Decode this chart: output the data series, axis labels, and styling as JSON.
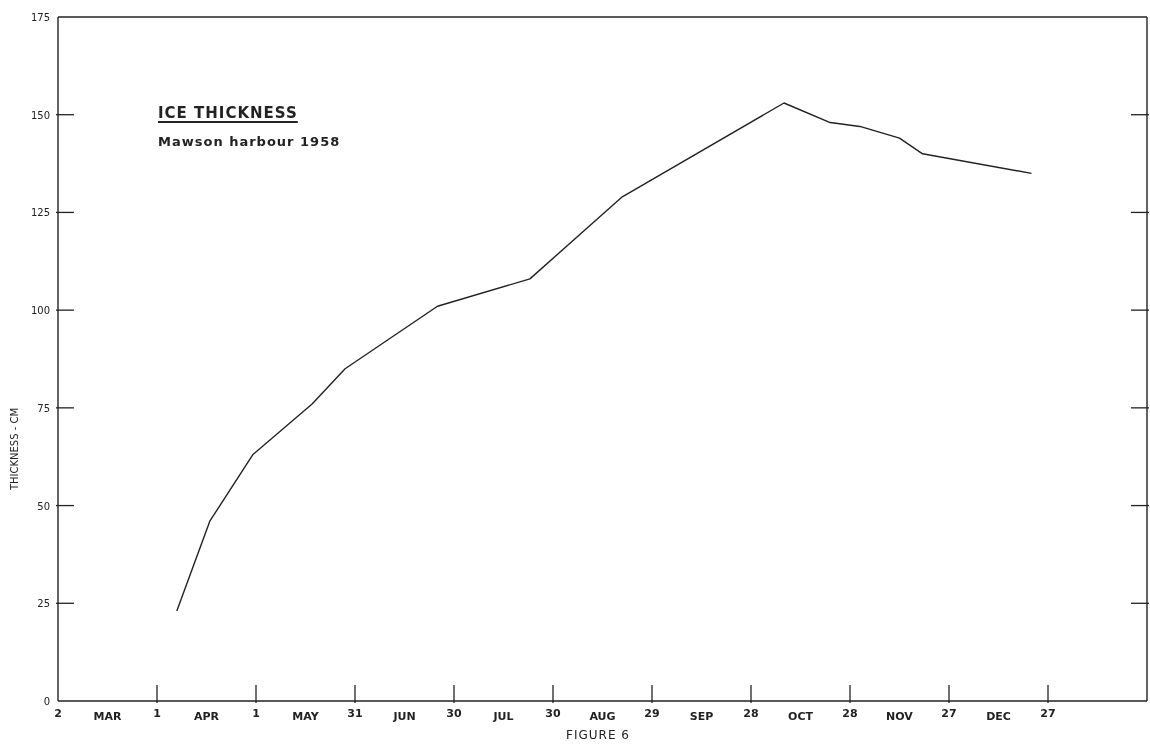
{
  "chart_data": {
    "type": "line",
    "title": "ICE THICKNESS",
    "subtitle": "Mawson harbour 1958",
    "ylabel": "THICKNESS - CM",
    "annotations": [
      "FIGURE 6"
    ],
    "x": [
      "1958-04-07",
      "1958-04-17",
      "1958-04-30",
      "1958-05-18",
      "1958-05-28",
      "1958-06-25",
      "1958-07-23",
      "1958-08-20",
      "1958-10-08",
      "1958-10-22",
      "1958-10-31",
      "1958-11-12",
      "1958-11-19",
      "1958-12-22"
    ],
    "series": [
      {
        "color": "#222222",
        "values": [
          23,
          46,
          63,
          76,
          85,
          101,
          108,
          129,
          153,
          148,
          147,
          144,
          140,
          135
        ]
      }
    ],
    "xlim": [
      "1958-03-02",
      "1959-01-26"
    ],
    "xticks": [
      {
        "value": "1958-03-02",
        "label": "2"
      },
      {
        "value": "1958-03-17",
        "label": "MAR"
      },
      {
        "value": "1958-04-01",
        "label": "1"
      },
      {
        "value": "1958-04-16",
        "label": "APR"
      },
      {
        "value": "1958-05-01",
        "label": "1"
      },
      {
        "value": "1958-05-16",
        "label": "MAY"
      },
      {
        "value": "1958-05-31",
        "label": "31"
      },
      {
        "value": "1958-06-15",
        "label": "JUN"
      },
      {
        "value": "1958-06-30",
        "label": "30"
      },
      {
        "value": "1958-07-15",
        "label": "JUL"
      },
      {
        "value": "1958-07-30",
        "label": "30"
      },
      {
        "value": "1958-08-14",
        "label": "AUG"
      },
      {
        "value": "1958-08-29",
        "label": "29"
      },
      {
        "value": "1958-09-13",
        "label": "SEP"
      },
      {
        "value": "1958-09-28",
        "label": "28"
      },
      {
        "value": "1958-10-13",
        "label": "OCT"
      },
      {
        "value": "1958-10-28",
        "label": "28"
      },
      {
        "value": "1958-11-12",
        "label": "NOV"
      },
      {
        "value": "1958-11-27",
        "label": "27"
      },
      {
        "value": "1958-12-12",
        "label": "DEC"
      },
      {
        "value": "1958-12-27",
        "label": "27"
      }
    ],
    "ylim": [
      0,
      175
    ],
    "yticks": [
      0,
      25,
      50,
      75,
      100,
      125,
      150,
      175
    ]
  }
}
